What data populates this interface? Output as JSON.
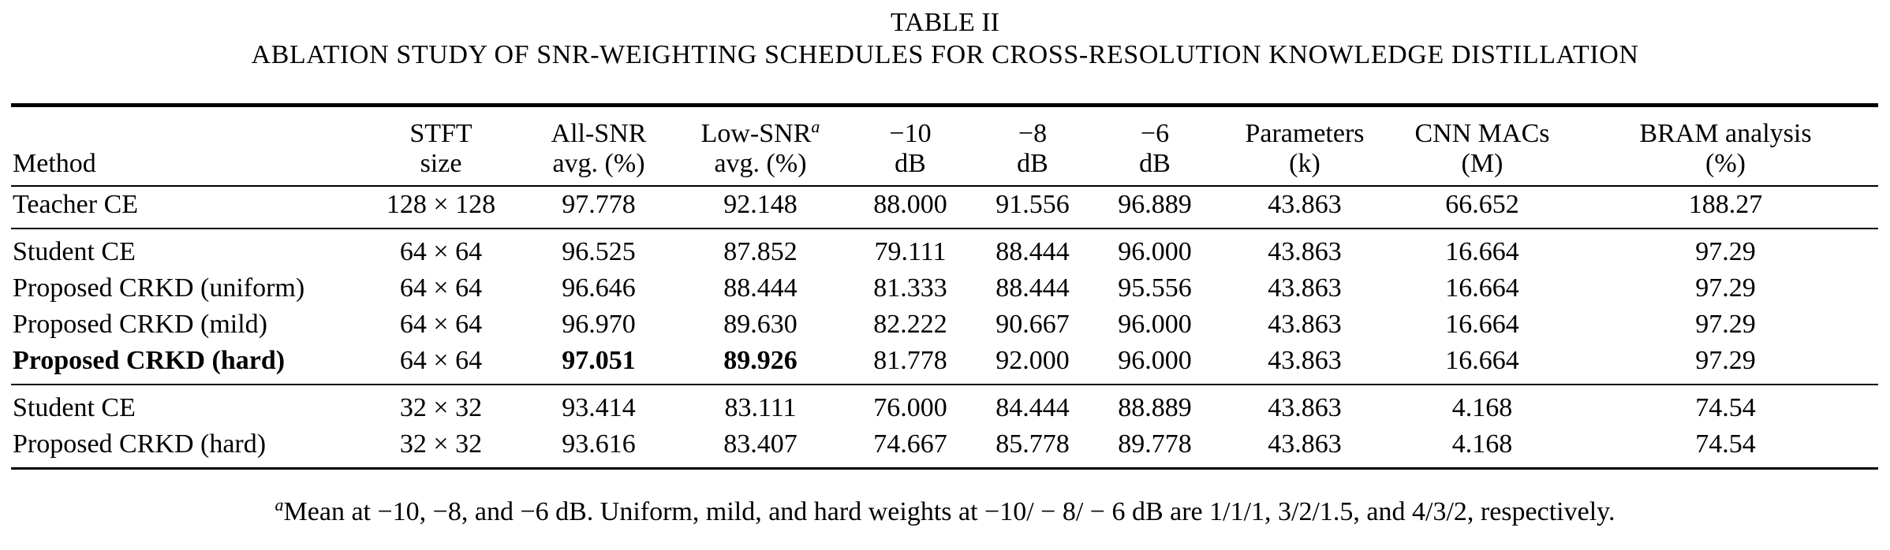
{
  "caption": {
    "label": "TABLE II",
    "title": "ABLATION STUDY OF SNR-WEIGHTING SCHEDULES FOR CROSS-RESOLUTION KNOWLEDGE DISTILLATION"
  },
  "headers": {
    "method": "Method",
    "stft": [
      "STFT",
      "size"
    ],
    "all_snr": [
      "All-SNR",
      "avg. (%)"
    ],
    "low_snr": [
      "Low-SNR",
      "a",
      "avg. (%)"
    ],
    "m10": [
      "−10",
      "dB"
    ],
    "m8": [
      "−8",
      "dB"
    ],
    "m6": [
      "−6",
      "dB"
    ],
    "params": [
      "Parameters",
      "(k)"
    ],
    "macs": [
      "CNN MACs",
      "(M)"
    ],
    "bram": [
      "BRAM analysis",
      "(%)"
    ]
  },
  "rows": [
    {
      "method": "Teacher CE",
      "stft": "128 × 128",
      "all": "97.778",
      "low": "92.148",
      "m10": "88.000",
      "m8": "91.556",
      "m6": "96.889",
      "params": "43.863",
      "macs": "66.652",
      "bram": "188.27"
    },
    {
      "method": "Student CE",
      "stft": "64 × 64",
      "all": "96.525",
      "low": "87.852",
      "m10": "79.111",
      "m8": "88.444",
      "m6": "96.000",
      "params": "43.863",
      "macs": "16.664",
      "bram": "97.29"
    },
    {
      "method": "Proposed CRKD (uniform)",
      "stft": "64 × 64",
      "all": "96.646",
      "low": "88.444",
      "m10": "81.333",
      "m8": "88.444",
      "m6": "95.556",
      "params": "43.863",
      "macs": "16.664",
      "bram": "97.29"
    },
    {
      "method": "Proposed CRKD (mild)",
      "stft": "64 × 64",
      "all": "96.970",
      "low": "89.630",
      "m10": "82.222",
      "m8": "90.667",
      "m6": "96.000",
      "params": "43.863",
      "macs": "16.664",
      "bram": "97.29"
    },
    {
      "method": "Proposed CRKD (hard)",
      "stft": "64 × 64",
      "all": "97.051",
      "low": "89.926",
      "m10": "81.778",
      "m8": "92.000",
      "m6": "96.000",
      "params": "43.863",
      "macs": "16.664",
      "bram": "97.29"
    },
    {
      "method": "Student CE",
      "stft": "32 × 32",
      "all": "93.414",
      "low": "83.111",
      "m10": "76.000",
      "m8": "84.444",
      "m6": "88.889",
      "params": "43.863",
      "macs": "4.168",
      "bram": "74.54"
    },
    {
      "method": "Proposed CRKD (hard)",
      "stft": "32 × 32",
      "all": "93.616",
      "low": "83.407",
      "m10": "74.667",
      "m8": "85.778",
      "m6": "89.778",
      "params": "43.863",
      "macs": "4.168",
      "bram": "74.54"
    }
  ],
  "footnote": {
    "marker": "a",
    "text": "Mean at −10, −8, and −6 dB. Uniform, mild, and hard weights at −10/ − 8/ − 6 dB are 1/1/1, 3/2/1.5, and 4/3/2, respectively."
  }
}
